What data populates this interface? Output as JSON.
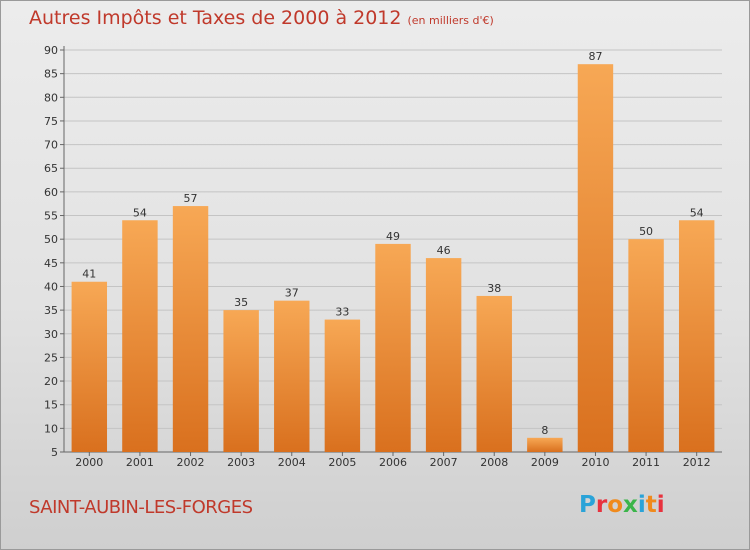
{
  "chart_data": {
    "type": "bar",
    "title": "Autres Impôts et Taxes de 2000 à 2012",
    "unit": "(en milliers d'€)",
    "categories": [
      "2000",
      "2001",
      "2002",
      "2003",
      "2004",
      "2005",
      "2006",
      "2007",
      "2008",
      "2009",
      "2010",
      "2011",
      "2012"
    ],
    "values": [
      41,
      54,
      57,
      35,
      37,
      33,
      49,
      46,
      38,
      8,
      87,
      50,
      54
    ],
    "ylim": [
      5,
      90
    ],
    "yticks": [
      5,
      10,
      15,
      20,
      25,
      30,
      35,
      40,
      45,
      50,
      55,
      60,
      65,
      70,
      75,
      80,
      85,
      90
    ],
    "grid": true,
    "bar_color_top": "#f7a855",
    "bar_color_bottom": "#d9701e",
    "title_color": "#c0392b"
  },
  "footer": {
    "commune": "SAINT-AUBIN-LES-FORGES",
    "logo_text": "Proxiti"
  }
}
